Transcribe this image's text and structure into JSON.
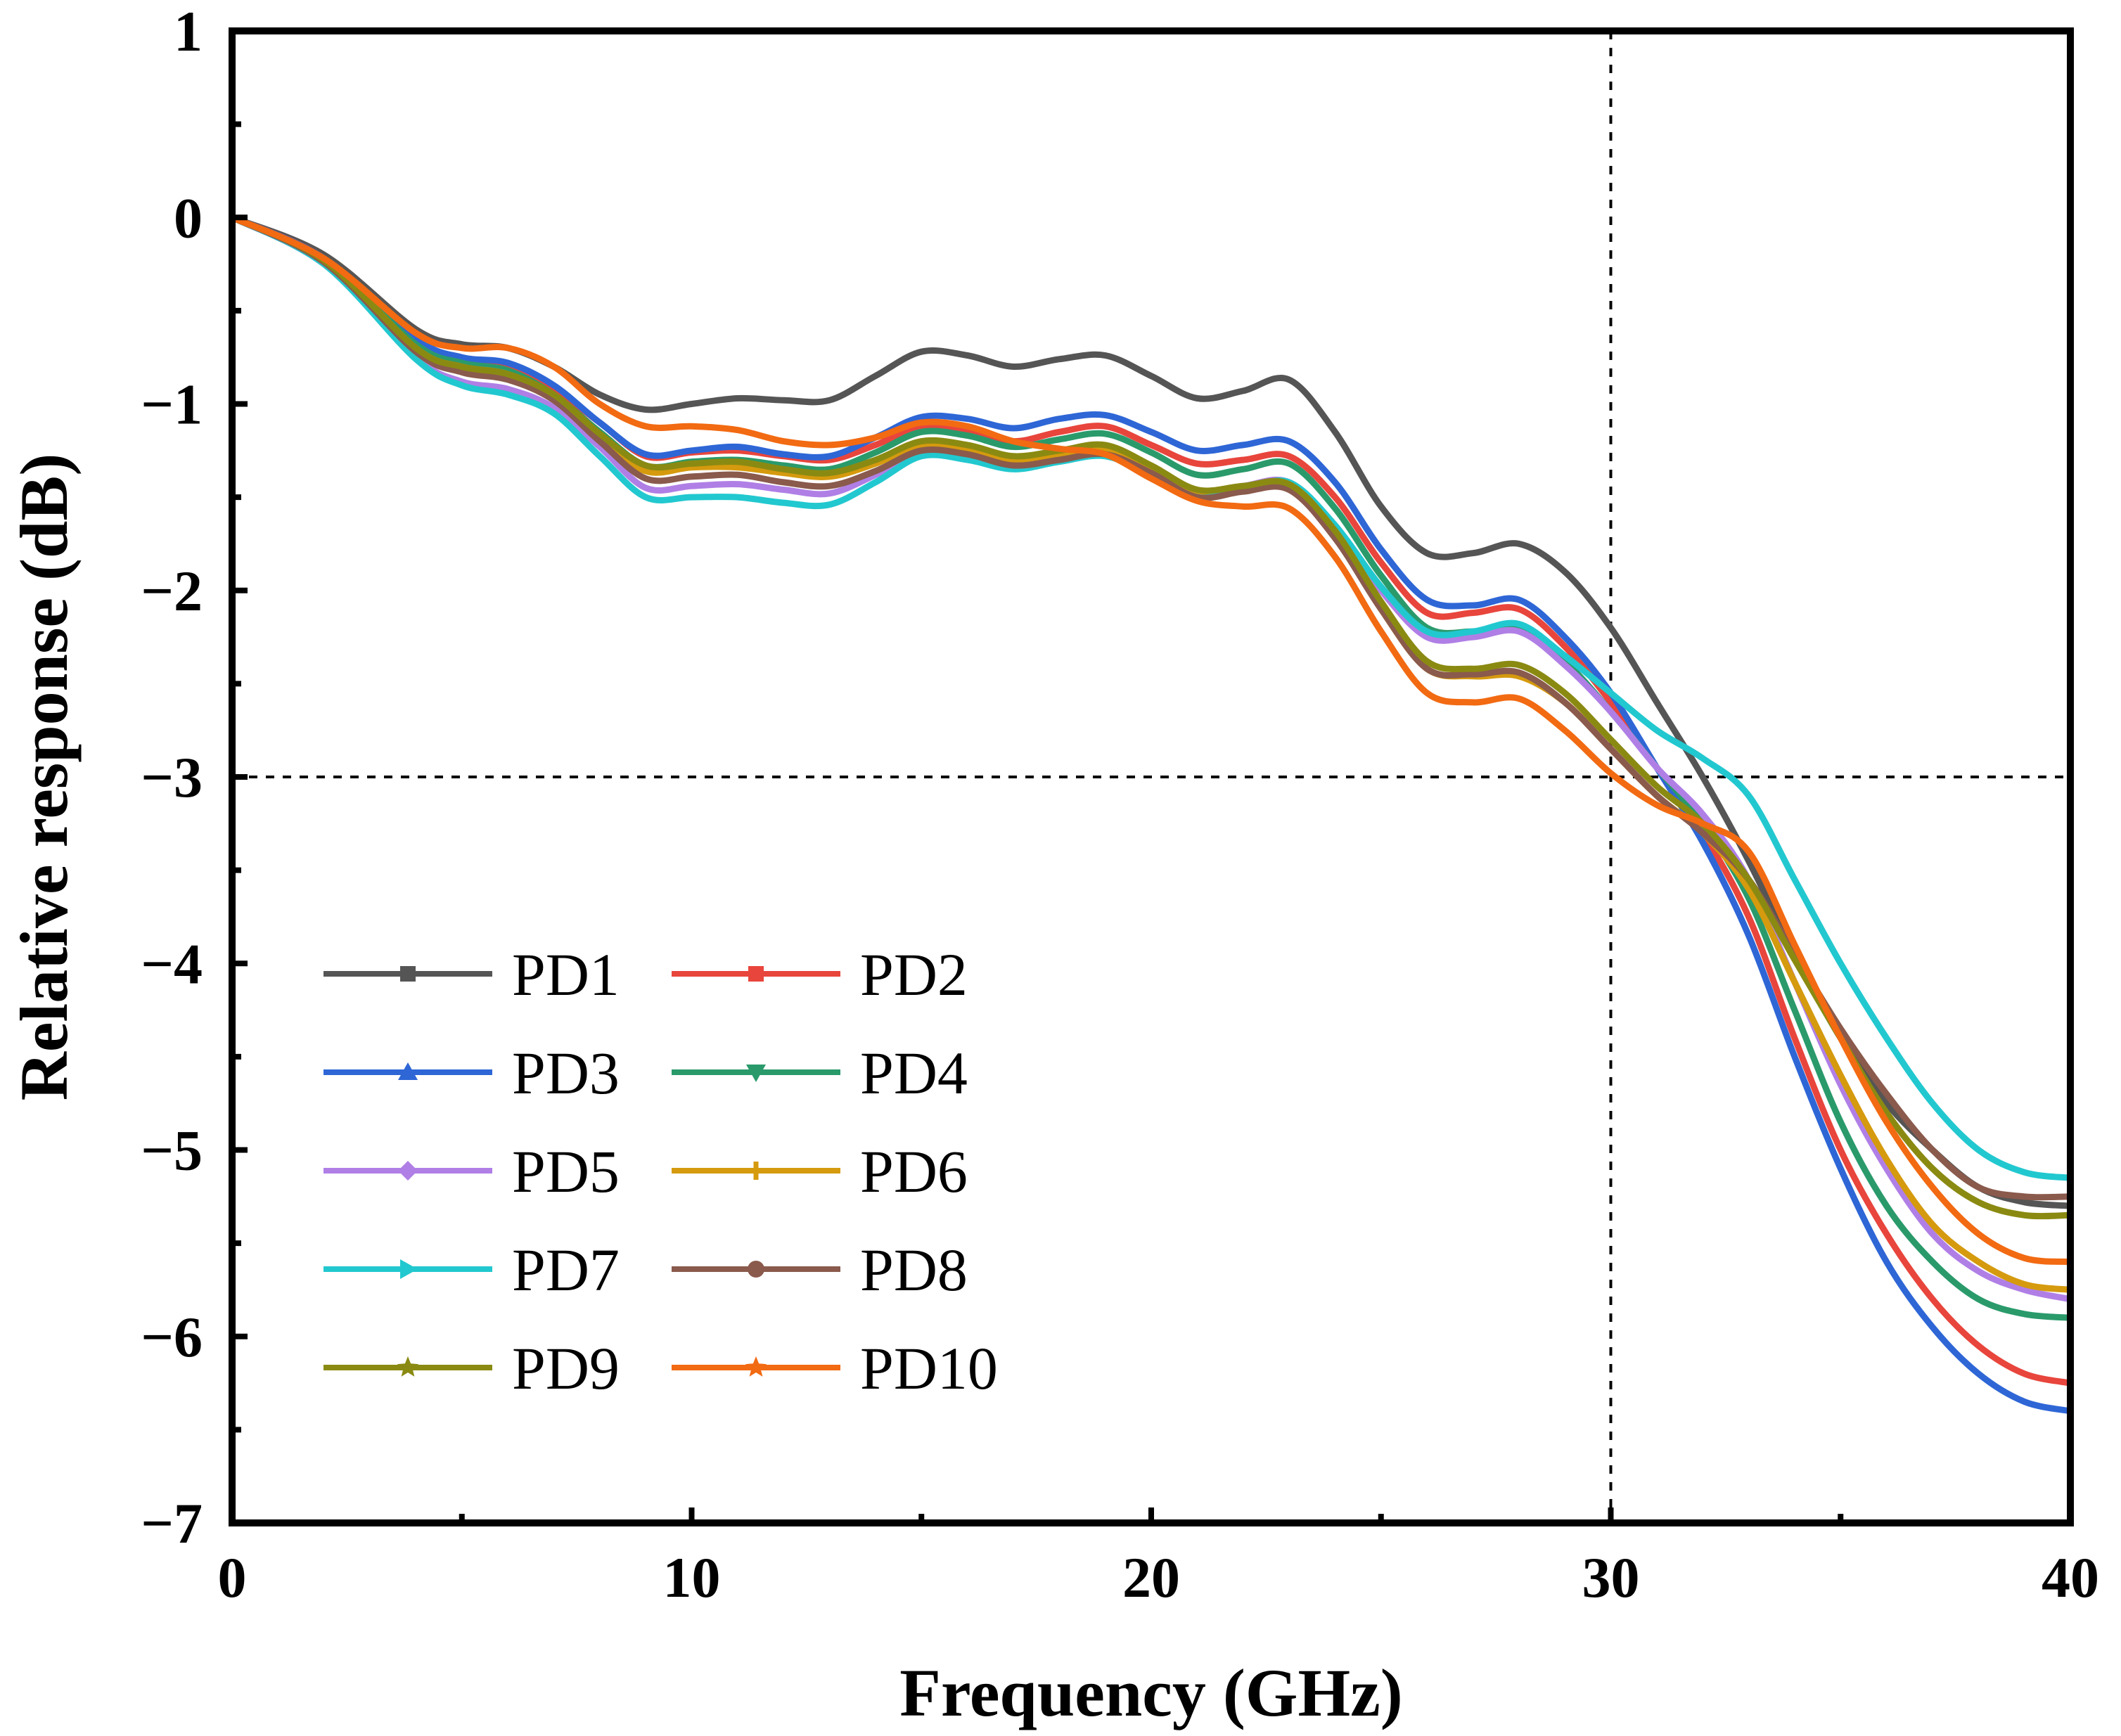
{
  "chart_data": {
    "type": "line",
    "title": "",
    "xlabel": "Frequency (GHz)",
    "ylabel": "Relative response (dB)",
    "xlim": [
      0,
      40
    ],
    "ylim": [
      -7,
      1
    ],
    "xticks": [
      0,
      10,
      20,
      30,
      40
    ],
    "xtick_labels": [
      "0",
      "10",
      "20",
      "30",
      "40"
    ],
    "yticks": [
      1,
      0,
      -1,
      -2,
      -3,
      -4,
      -5,
      -6,
      -7
    ],
    "ytick_labels": [
      "1",
      "0",
      "−1",
      "−2",
      "−3",
      "−4",
      "−5",
      "−6",
      "−7"
    ],
    "grid": false,
    "legend_position": "lower-left",
    "reference_lines": [
      {
        "axis": "y",
        "value": -3,
        "style": "dotted"
      },
      {
        "axis": "x",
        "value": 30,
        "style": "dotted"
      }
    ],
    "x": [
      0,
      2,
      4,
      5,
      6,
      7,
      8,
      9,
      10,
      11,
      12,
      13,
      14,
      15,
      16,
      17,
      18,
      19,
      20,
      21,
      22,
      23,
      24,
      25,
      26,
      27,
      28,
      29,
      30,
      31,
      32,
      33,
      34,
      35,
      36,
      37,
      38,
      39,
      40
    ],
    "series": [
      {
        "name": "PD1",
        "color": "#555555",
        "marker": "square",
        "values": [
          0,
          -0.2,
          -0.6,
          -0.68,
          -0.7,
          -0.8,
          -0.95,
          -1.03,
          -1.0,
          -0.97,
          -0.98,
          -0.98,
          -0.85,
          -0.72,
          -0.74,
          -0.8,
          -0.76,
          -0.74,
          -0.85,
          -0.97,
          -0.93,
          -0.87,
          -1.15,
          -1.55,
          -1.8,
          -1.8,
          -1.75,
          -1.9,
          -2.2,
          -2.6,
          -3.0,
          -3.45,
          -3.95,
          -4.4,
          -4.75,
          -5.0,
          -5.2,
          -5.28,
          -5.3
        ]
      },
      {
        "name": "PD2",
        "color": "#e8453c",
        "marker": "square",
        "values": [
          0,
          -0.22,
          -0.66,
          -0.76,
          -0.8,
          -0.92,
          -1.1,
          -1.28,
          -1.26,
          -1.25,
          -1.28,
          -1.3,
          -1.22,
          -1.12,
          -1.14,
          -1.2,
          -1.15,
          -1.12,
          -1.22,
          -1.32,
          -1.3,
          -1.28,
          -1.5,
          -1.85,
          -2.12,
          -2.12,
          -2.1,
          -2.3,
          -2.6,
          -2.95,
          -3.3,
          -3.75,
          -4.4,
          -5.0,
          -5.45,
          -5.8,
          -6.05,
          -6.2,
          -6.25
        ]
      },
      {
        "name": "PD3",
        "color": "#2e66d6",
        "marker": "triangle-up",
        "values": [
          0,
          -0.22,
          -0.65,
          -0.75,
          -0.78,
          -0.9,
          -1.1,
          -1.27,
          -1.25,
          -1.23,
          -1.27,
          -1.28,
          -1.18,
          -1.07,
          -1.08,
          -1.13,
          -1.08,
          -1.06,
          -1.15,
          -1.25,
          -1.22,
          -1.2,
          -1.42,
          -1.78,
          -2.05,
          -2.08,
          -2.05,
          -2.25,
          -2.55,
          -2.95,
          -3.35,
          -3.85,
          -4.5,
          -5.1,
          -5.6,
          -5.95,
          -6.2,
          -6.35,
          -6.4
        ]
      },
      {
        "name": "PD4",
        "color": "#2a9a6b",
        "marker": "triangle-down",
        "values": [
          0,
          -0.23,
          -0.68,
          -0.78,
          -0.82,
          -0.95,
          -1.15,
          -1.33,
          -1.31,
          -1.3,
          -1.33,
          -1.35,
          -1.26,
          -1.15,
          -1.17,
          -1.23,
          -1.19,
          -1.16,
          -1.26,
          -1.38,
          -1.35,
          -1.32,
          -1.56,
          -1.92,
          -2.2,
          -2.22,
          -2.2,
          -2.38,
          -2.65,
          -2.95,
          -3.25,
          -3.65,
          -4.25,
          -4.85,
          -5.3,
          -5.6,
          -5.8,
          -5.88,
          -5.9
        ]
      },
      {
        "name": "PD5",
        "color": "#b07fe6",
        "marker": "diamond",
        "values": [
          0,
          -0.25,
          -0.75,
          -0.88,
          -0.92,
          -1.02,
          -1.23,
          -1.45,
          -1.44,
          -1.43,
          -1.46,
          -1.48,
          -1.38,
          -1.25,
          -1.26,
          -1.31,
          -1.27,
          -1.24,
          -1.34,
          -1.47,
          -1.44,
          -1.42,
          -1.66,
          -2.0,
          -2.25,
          -2.25,
          -2.22,
          -2.4,
          -2.65,
          -2.95,
          -3.2,
          -3.55,
          -4.1,
          -4.65,
          -5.1,
          -5.45,
          -5.65,
          -5.75,
          -5.8
        ]
      },
      {
        "name": "PD6",
        "color": "#d59a0e",
        "marker": "plus",
        "values": [
          0,
          -0.23,
          -0.7,
          -0.8,
          -0.84,
          -0.96,
          -1.18,
          -1.36,
          -1.34,
          -1.34,
          -1.37,
          -1.39,
          -1.32,
          -1.22,
          -1.24,
          -1.3,
          -1.28,
          -1.25,
          -1.36,
          -1.48,
          -1.46,
          -1.45,
          -1.7,
          -2.1,
          -2.42,
          -2.46,
          -2.46,
          -2.6,
          -2.85,
          -3.1,
          -3.3,
          -3.6,
          -4.1,
          -4.6,
          -5.05,
          -5.4,
          -5.6,
          -5.72,
          -5.75
        ]
      },
      {
        "name": "PD7",
        "color": "#22c8cf",
        "marker": "triangle-right",
        "values": [
          0,
          -0.25,
          -0.76,
          -0.9,
          -0.95,
          -1.05,
          -1.28,
          -1.5,
          -1.5,
          -1.5,
          -1.53,
          -1.54,
          -1.42,
          -1.28,
          -1.3,
          -1.35,
          -1.31,
          -1.28,
          -1.38,
          -1.5,
          -1.46,
          -1.42,
          -1.65,
          -1.98,
          -2.22,
          -2.22,
          -2.18,
          -2.35,
          -2.55,
          -2.75,
          -2.9,
          -3.1,
          -3.55,
          -4.0,
          -4.4,
          -4.75,
          -5.0,
          -5.12,
          -5.15
        ]
      },
      {
        "name": "PD8",
        "color": "#8a5a4c",
        "marker": "circle",
        "values": [
          0,
          -0.24,
          -0.72,
          -0.83,
          -0.87,
          -0.98,
          -1.2,
          -1.4,
          -1.39,
          -1.38,
          -1.42,
          -1.44,
          -1.36,
          -1.25,
          -1.27,
          -1.33,
          -1.3,
          -1.27,
          -1.37,
          -1.5,
          -1.47,
          -1.46,
          -1.72,
          -2.1,
          -2.42,
          -2.45,
          -2.44,
          -2.6,
          -2.85,
          -3.1,
          -3.3,
          -3.55,
          -3.95,
          -4.35,
          -4.7,
          -5.0,
          -5.2,
          -5.25,
          -5.25
        ]
      },
      {
        "name": "PD9",
        "color": "#8a8a12",
        "marker": "star",
        "values": [
          0,
          -0.23,
          -0.7,
          -0.8,
          -0.84,
          -0.95,
          -1.16,
          -1.33,
          -1.32,
          -1.31,
          -1.35,
          -1.37,
          -1.3,
          -1.2,
          -1.22,
          -1.28,
          -1.25,
          -1.22,
          -1.33,
          -1.46,
          -1.44,
          -1.43,
          -1.68,
          -2.06,
          -2.38,
          -2.42,
          -2.4,
          -2.55,
          -2.8,
          -3.05,
          -3.25,
          -3.55,
          -3.98,
          -4.4,
          -4.8,
          -5.1,
          -5.28,
          -5.35,
          -5.35
        ]
      },
      {
        "name": "PD10",
        "color": "#f26a12",
        "marker": "star",
        "values": [
          0,
          -0.22,
          -0.62,
          -0.7,
          -0.7,
          -0.8,
          -1.0,
          -1.12,
          -1.12,
          -1.14,
          -1.2,
          -1.22,
          -1.18,
          -1.1,
          -1.12,
          -1.2,
          -1.24,
          -1.27,
          -1.4,
          -1.52,
          -1.55,
          -1.56,
          -1.82,
          -2.22,
          -2.55,
          -2.6,
          -2.58,
          -2.75,
          -2.98,
          -3.15,
          -3.25,
          -3.4,
          -3.9,
          -4.4,
          -4.85,
          -5.2,
          -5.45,
          -5.58,
          -5.6
        ]
      }
    ]
  }
}
